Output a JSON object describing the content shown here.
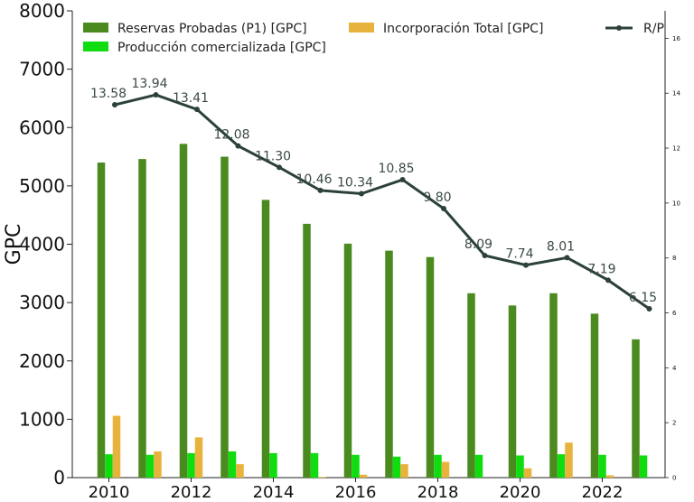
{
  "chart_data": {
    "type": "bar+line",
    "years": [
      2010,
      2011,
      2012,
      2013,
      2014,
      2015,
      2016,
      2017,
      2018,
      2019,
      2020,
      2021,
      2022,
      2023
    ],
    "series": [
      {
        "name": "Reservas Probadas (P1) [GPC]",
        "type": "bar",
        "axis": "left",
        "color": "#4a8a1e",
        "values": [
          5400,
          5460,
          5720,
          5500,
          4760,
          4350,
          4010,
          3890,
          3780,
          3160,
          2950,
          3160,
          2810,
          2370
        ]
      },
      {
        "name": "Producción comercializada [GPC]",
        "type": "bar",
        "axis": "left",
        "color": "#10dd10",
        "values": [
          400,
          390,
          420,
          450,
          420,
          420,
          390,
          360,
          390,
          390,
          380,
          400,
          390,
          380
        ]
      },
      {
        "name": "Incorporación Total [GPC]",
        "type": "bar",
        "axis": "left",
        "color": "#e8b33c",
        "values": [
          1060,
          450,
          690,
          230,
          0,
          10,
          50,
          230,
          270,
          0,
          160,
          600,
          40,
          0
        ]
      },
      {
        "name": "R/P",
        "type": "line",
        "axis": "right",
        "color": "#2c4238",
        "values": [
          13.58,
          13.94,
          13.41,
          12.08,
          11.3,
          10.46,
          10.34,
          10.85,
          9.8,
          8.09,
          7.74,
          8.01,
          7.19,
          6.15
        ],
        "labels": [
          "13.58",
          "13.94",
          "13.41",
          "12.08",
          "11.30",
          "10.46",
          "10.34",
          "10.85",
          "9.80",
          "8.09",
          "7.74",
          "8.01",
          "7.19",
          "6.15"
        ]
      }
    ],
    "ylabel": "GPC",
    "ylim": [
      0,
      8000
    ],
    "yticks": [
      "0",
      "1000",
      "2000",
      "3000",
      "4000",
      "5000",
      "6000",
      "7000",
      "8000"
    ],
    "y2lim": [
      0,
      17
    ],
    "y2ticks": [
      "0",
      "2",
      "4",
      "6",
      "8",
      "10",
      "12",
      "14",
      "16"
    ],
    "xticks": [
      "2010",
      "2012",
      "2014",
      "2016",
      "2018",
      "2020",
      "2022"
    ],
    "xtick_years": [
      2010,
      2012,
      2014,
      2016,
      2018,
      2020,
      2022
    ],
    "legend_loc": "top",
    "grid": false
  }
}
